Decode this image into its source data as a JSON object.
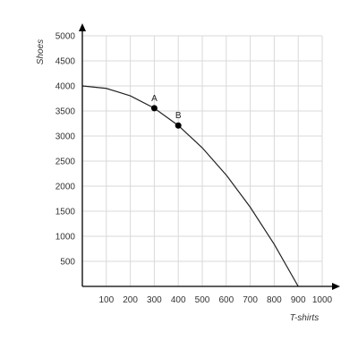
{
  "chart_data": {
    "type": "line",
    "xlabel": "T-shirts",
    "ylabel": "Shoes",
    "xlim": [
      0,
      1000
    ],
    "ylim": [
      0,
      5000
    ],
    "x_ticks": [
      100,
      200,
      300,
      400,
      500,
      600,
      700,
      800,
      900,
      1000
    ],
    "y_ticks": [
      500,
      1000,
      1500,
      2000,
      2500,
      3000,
      3500,
      4000,
      4500,
      5000
    ],
    "x_tick_labels": [
      "100",
      "200",
      "300",
      "400",
      "500",
      "600",
      "700",
      "800",
      "900",
      "1000"
    ],
    "y_tick_labels": [
      "500",
      "1000",
      "1500",
      "2000",
      "2500",
      "3000",
      "3500",
      "4000",
      "4500",
      "5000"
    ],
    "grid": true,
    "series": [
      {
        "x": [
          0,
          100,
          200,
          300,
          400,
          500,
          600,
          700,
          800,
          900
        ],
        "y": [
          4000,
          3951,
          3802,
          3556,
          3210,
          2765,
          2222,
          1580,
          840,
          0
        ]
      }
    ],
    "points": [
      {
        "label": "A",
        "x": 300,
        "y": 3556
      },
      {
        "label": "B",
        "x": 400,
        "y": 3210
      }
    ],
    "colors": {
      "line": "#222222",
      "grid": "#d9d9d9",
      "axis": "#000000"
    }
  }
}
